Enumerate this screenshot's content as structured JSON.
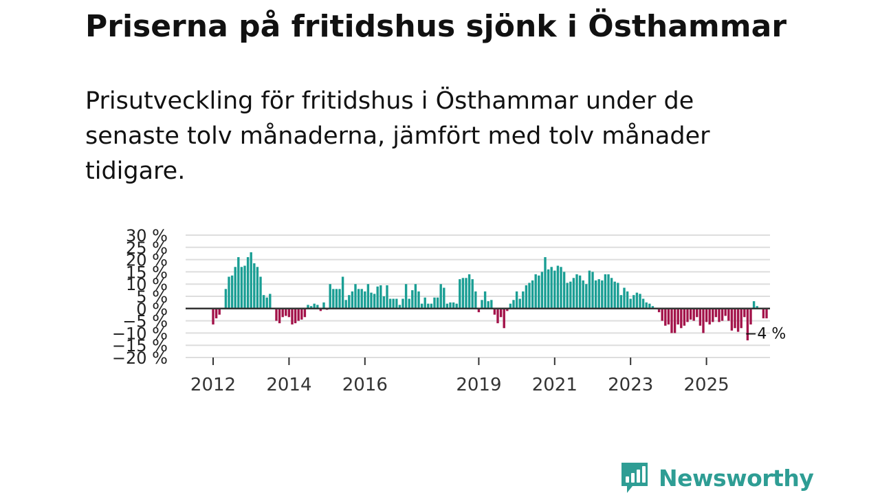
{
  "title": "Priserna på fritidshus sjönk i Östhammar",
  "subtitle": "Prisutveckling för fritidshus i Östhammar under de senaste tolv månaderna, jämfört med tolv månader tidigare.",
  "brand": {
    "name": "Newsworthy",
    "icon": "newsworthy-logo-icon"
  },
  "colors": {
    "positive": "#1a9e94",
    "negative": "#a3134a",
    "zero_line": "#333333",
    "grid": "#dddddd",
    "brand": "#2e9d94"
  },
  "chart_data": {
    "type": "bar",
    "title": "Priserna på fritidshus sjönk i Östhammar",
    "xlabel": "",
    "ylabel": "",
    "unit": "%",
    "ylim": [
      -20,
      30
    ],
    "yticks": [
      30,
      25,
      20,
      15,
      10,
      5,
      0,
      -5,
      -10,
      -15,
      -20
    ],
    "ytick_labels": [
      "30 %",
      "25 %",
      "20 %",
      "15 %",
      "10 %",
      "5 %",
      "0 %",
      "−5 %",
      "−10 %",
      "−15 %",
      "−20 %"
    ],
    "xticks": [
      {
        "label": "2012",
        "index": 0
      },
      {
        "label": "2014",
        "index": 24
      },
      {
        "label": "2016",
        "index": 48
      },
      {
        "label": "2019",
        "index": 84
      },
      {
        "label": "2021",
        "index": 108
      },
      {
        "label": "2023",
        "index": 132
      },
      {
        "label": "2025",
        "index": 156
      }
    ],
    "start": "2012-01",
    "values": [
      -6.5,
      -4,
      -2.5,
      0,
      8,
      13,
      13.5,
      17,
      21,
      17,
      17.5,
      21,
      23,
      18.5,
      17,
      13,
      5.5,
      4.5,
      6,
      0,
      -5,
      -6,
      -3.5,
      -3,
      -3.5,
      -6.5,
      -6,
      -5,
      -4.5,
      -3.5,
      1.5,
      1,
      2,
      1.5,
      -1,
      2.5,
      -0.5,
      10,
      8,
      8,
      8,
      13,
      3.5,
      5.5,
      7,
      10,
      8,
      8,
      7,
      10,
      6.5,
      6,
      9,
      9.5,
      5,
      9.5,
      4,
      4,
      4,
      1.5,
      4,
      10,
      4,
      7.5,
      10,
      7,
      2,
      4.5,
      2,
      2,
      4.5,
      4.5,
      10,
      8.5,
      2,
      2.5,
      2.5,
      2,
      12,
      12.5,
      12.5,
      14,
      12,
      7,
      -1.5,
      3.5,
      7,
      3,
      3.5,
      -2.5,
      -6,
      -3.5,
      -8,
      -1,
      2,
      3.5,
      7,
      4,
      7,
      9.5,
      10.5,
      11.5,
      14,
      13.5,
      15,
      21,
      16,
      17,
      15.5,
      17.5,
      17,
      15,
      10.5,
      11,
      12.5,
      14,
      13.5,
      11.5,
      10,
      15.5,
      15,
      11.5,
      12,
      11.5,
      14,
      14,
      12.5,
      11,
      10.5,
      5.5,
      8.5,
      7,
      4,
      5.5,
      6.5,
      6,
      4,
      2.5,
      2,
      1,
      0,
      -1.5,
      -5,
      -7,
      -6.5,
      -10,
      -10,
      -6.5,
      -8,
      -7,
      -5.5,
      -4.5,
      -5,
      -3.5,
      -7,
      -10,
      -5.5,
      -6.5,
      -5.5,
      -3.5,
      -5.5,
      -5,
      -3,
      -5,
      -9,
      -8,
      -9.5,
      -8,
      -3.5,
      -13,
      -6.5,
      3,
      1,
      0,
      -4,
      -4
    ],
    "annotation": {
      "label": "−4 %",
      "value": -4
    }
  }
}
